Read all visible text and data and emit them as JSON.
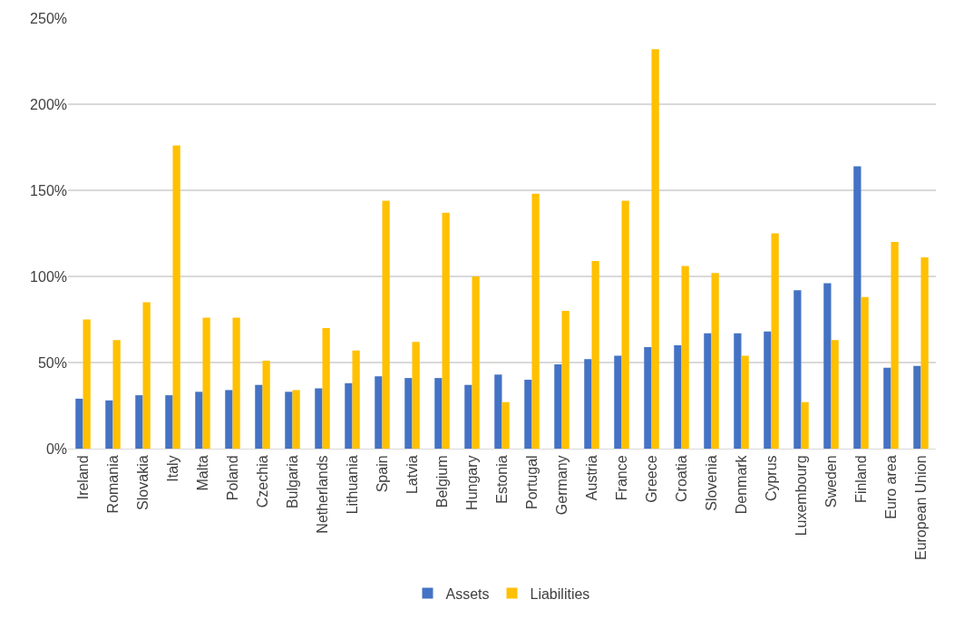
{
  "chart_data": {
    "type": "bar",
    "categories": [
      "Ireland",
      "Romania",
      "Slovakia",
      "Italy",
      "Malta",
      "Poland",
      "Czechia",
      "Bulgaria",
      "Netherlands",
      "Lithuania",
      "Spain",
      "Latvia",
      "Belgium",
      "Hungary",
      "Estonia",
      "Portugal",
      "Germany",
      "Austria",
      "France",
      "Greece",
      "Croatia",
      "Slovenia",
      "Denmark",
      "Cyprus",
      "Luxembourg",
      "Sweden",
      "Finland",
      "Euro area",
      "European Union"
    ],
    "series": [
      {
        "name": "Assets",
        "color": "#4472c4",
        "values": [
          29,
          28,
          31,
          31,
          33,
          34,
          37,
          33,
          35,
          38,
          42,
          41,
          41,
          37,
          43,
          40,
          49,
          52,
          54,
          59,
          60,
          67,
          67,
          68,
          92,
          96,
          164,
          47,
          48
        ]
      },
      {
        "name": "Liabilities",
        "color": "#ffc000",
        "values": [
          75,
          63,
          85,
          176,
          76,
          76,
          51,
          34,
          70,
          57,
          144,
          62,
          137,
          100,
          27,
          148,
          80,
          109,
          144,
          232,
          106,
          102,
          54,
          125,
          27,
          63,
          88,
          120,
          111
        ]
      }
    ],
    "ylim": [
      0,
      250
    ],
    "yticks": [
      {
        "value": 0,
        "label": "0%"
      },
      {
        "value": 50,
        "label": "50%"
      },
      {
        "value": 100,
        "label": "100%"
      },
      {
        "value": 150,
        "label": "150%"
      },
      {
        "value": 200,
        "label": "200%"
      },
      {
        "value": 250,
        "label": "250%"
      }
    ],
    "grid": "y",
    "legend": "bottom"
  }
}
